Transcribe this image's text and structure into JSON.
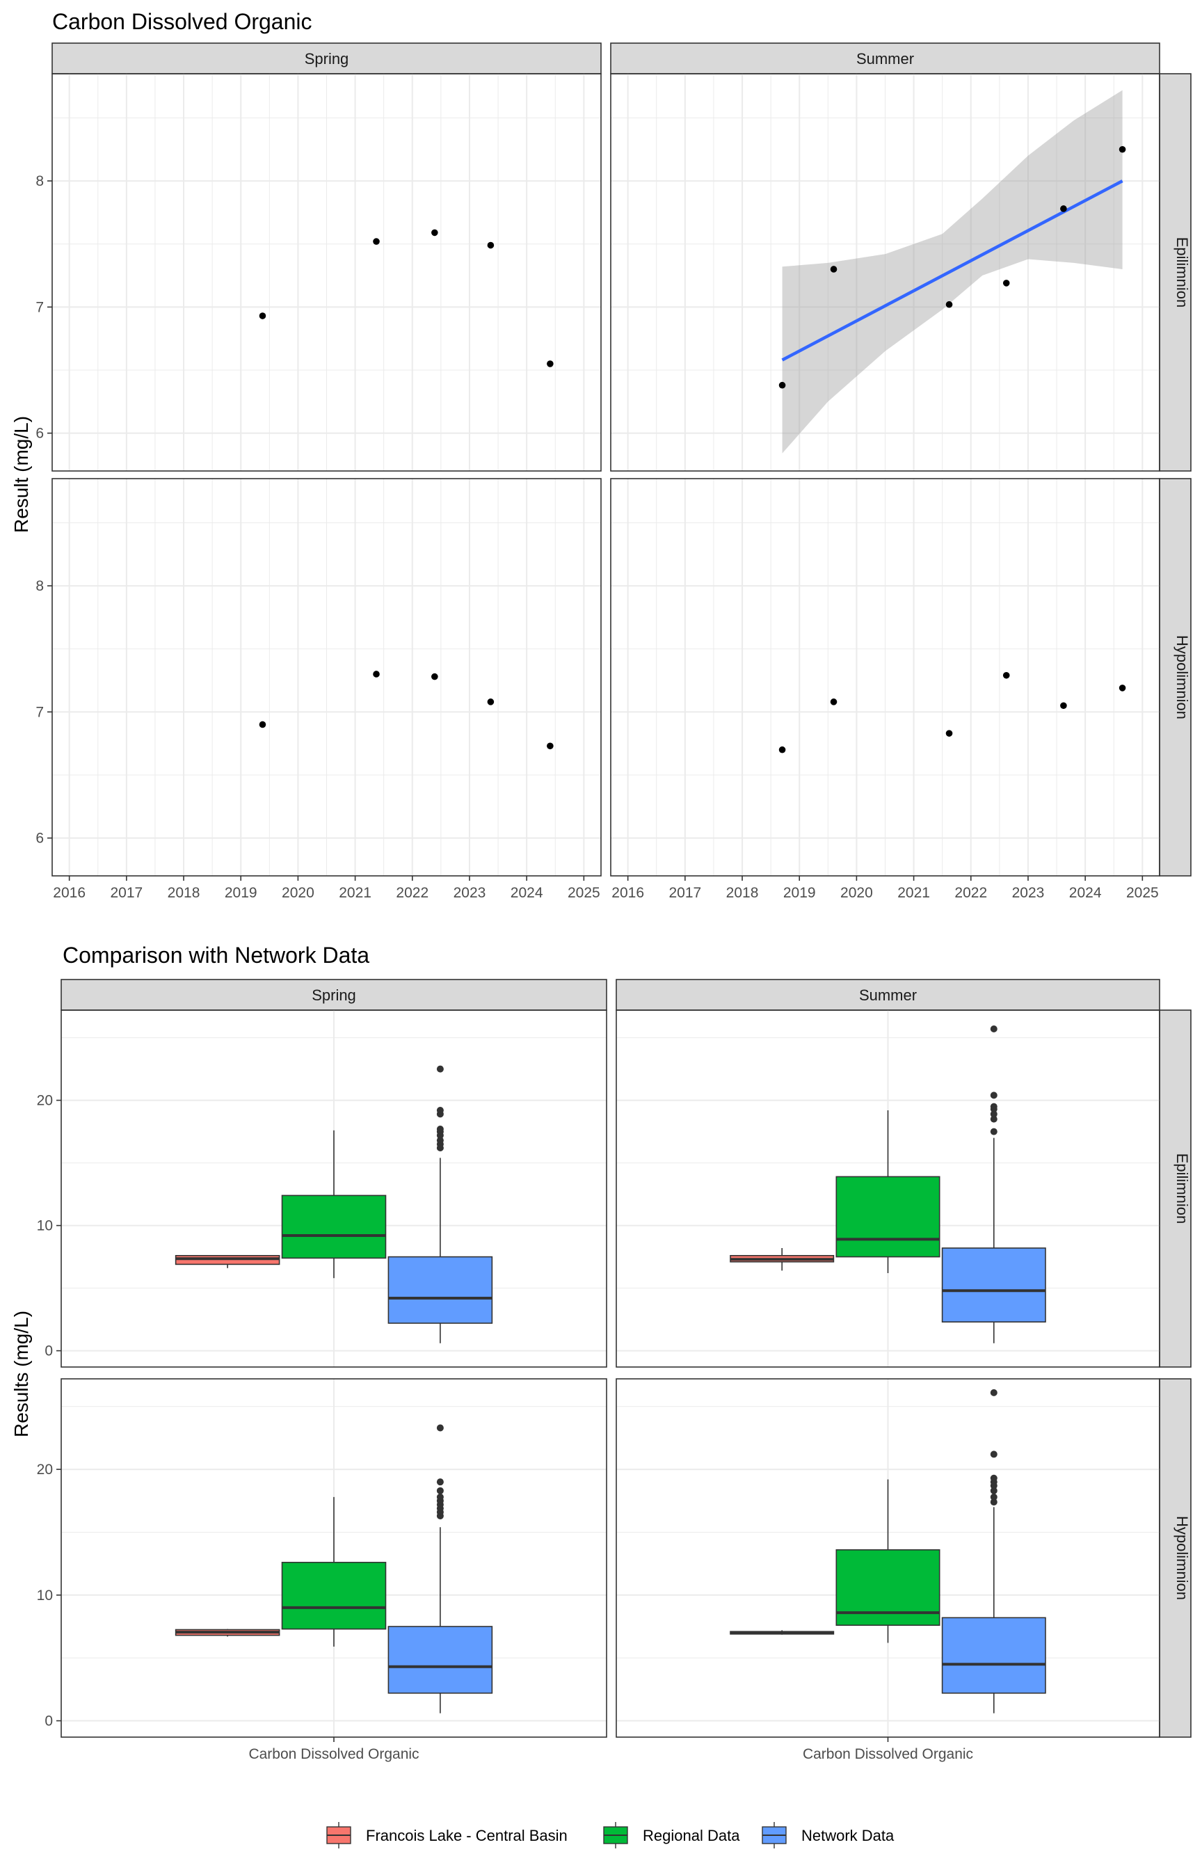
{
  "chart_data": [
    {
      "type": "scatter",
      "title": "Carbon Dissolved Organic",
      "ylabel": "Result (mg/L)",
      "xlabel": "",
      "facet_cols": [
        "Spring",
        "Summer"
      ],
      "facet_rows": [
        "Epilimnion",
        "Hypolimnion"
      ],
      "xlim": [
        2015.7,
        2025.3
      ],
      "ylim": [
        5.7,
        8.85
      ],
      "x_ticks": [
        "2016",
        "2017",
        "2018",
        "2019",
        "2020",
        "2021",
        "2022",
        "2023",
        "2024",
        "2025"
      ],
      "y_ticks": [
        "6",
        "7",
        "8"
      ],
      "grid": true,
      "panels": [
        {
          "season": "Spring",
          "layer": "Epilimnion",
          "points": [
            {
              "x": 2019.38,
              "y": 6.93
            },
            {
              "x": 2021.37,
              "y": 7.52
            },
            {
              "x": 2022.39,
              "y": 7.59
            },
            {
              "x": 2023.37,
              "y": 7.49
            },
            {
              "x": 2024.41,
              "y": 6.55
            }
          ]
        },
        {
          "season": "Summer",
          "layer": "Epilimnion",
          "points": [
            {
              "x": 2018.7,
              "y": 6.38
            },
            {
              "x": 2019.6,
              "y": 7.3
            },
            {
              "x": 2021.62,
              "y": 7.02
            },
            {
              "x": 2022.62,
              "y": 7.19
            },
            {
              "x": 2023.62,
              "y": 7.78
            },
            {
              "x": 2024.65,
              "y": 8.25
            }
          ],
          "trend": {
            "x": [
              2018.7,
              2024.65
            ],
            "y": [
              6.58,
              8.0
            ],
            "ci_x": [
              2018.7,
              2019.5,
              2020.5,
              2021.5,
              2022.2,
              2023.0,
              2023.8,
              2024.65
            ],
            "ci_upper": [
              7.32,
              7.35,
              7.42,
              7.58,
              7.86,
              8.2,
              8.48,
              8.72
            ],
            "ci_lower": [
              5.84,
              6.25,
              6.65,
              6.98,
              7.25,
              7.38,
              7.35,
              7.3
            ]
          }
        },
        {
          "season": "Spring",
          "layer": "Hypolimnion",
          "points": [
            {
              "x": 2019.38,
              "y": 6.9
            },
            {
              "x": 2021.37,
              "y": 7.3
            },
            {
              "x": 2022.39,
              "y": 7.28
            },
            {
              "x": 2023.37,
              "y": 7.08
            },
            {
              "x": 2024.41,
              "y": 6.73
            }
          ]
        },
        {
          "season": "Summer",
          "layer": "Hypolimnion",
          "points": [
            {
              "x": 2018.7,
              "y": 6.7
            },
            {
              "x": 2019.6,
              "y": 7.08
            },
            {
              "x": 2021.62,
              "y": 6.83
            },
            {
              "x": 2022.62,
              "y": 7.29
            },
            {
              "x": 2023.62,
              "y": 7.05
            },
            {
              "x": 2024.65,
              "y": 7.19
            }
          ]
        }
      ]
    },
    {
      "type": "box",
      "title": "Comparison with Network Data",
      "ylabel": "Results (mg/L)",
      "xlabel": "",
      "x_category": "Carbon Dissolved Organic",
      "facet_cols": [
        "Spring",
        "Summer"
      ],
      "facet_rows": [
        "Epilimnion",
        "Hypolimnion"
      ],
      "ylim": [
        -1.3,
        27.2
      ],
      "y_ticks": [
        "0",
        "10",
        "20"
      ],
      "grid": true,
      "legend": {
        "position": "bottom",
        "entries": [
          {
            "label": "Francois Lake - Central Basin",
            "color": "#F8766D"
          },
          {
            "label": "Regional Data",
            "color": "#00BA38"
          },
          {
            "label": "Network Data",
            "color": "#619CFF"
          }
        ]
      },
      "panels": [
        {
          "season": "Spring",
          "layer": "Epilimnion",
          "boxes": [
            {
              "group": "Francois Lake - Central Basin",
              "min": 6.6,
              "q1": 6.9,
              "median": 7.35,
              "q3": 7.6,
              "max": 7.6,
              "outliers": []
            },
            {
              "group": "Regional Data",
              "min": 5.8,
              "q1": 7.4,
              "median": 9.2,
              "q3": 12.4,
              "max": 17.6,
              "outliers": []
            },
            {
              "group": "Network Data",
              "min": 0.6,
              "q1": 2.2,
              "median": 4.2,
              "q3": 7.5,
              "max": 15.4,
              "outliers": [
                16.2,
                16.5,
                16.8,
                17.2,
                17.5,
                17.7,
                18.9,
                19.2,
                22.5
              ]
            }
          ]
        },
        {
          "season": "Summer",
          "layer": "Epilimnion",
          "boxes": [
            {
              "group": "Francois Lake - Central Basin",
              "min": 6.4,
              "q1": 7.1,
              "median": 7.3,
              "q3": 7.6,
              "max": 8.2,
              "outliers": []
            },
            {
              "group": "Regional Data",
              "min": 6.2,
              "q1": 7.5,
              "median": 8.9,
              "q3": 13.9,
              "max": 19.2,
              "outliers": []
            },
            {
              "group": "Network Data",
              "min": 0.6,
              "q1": 2.3,
              "median": 4.8,
              "q3": 8.2,
              "max": 17.0,
              "outliers": [
                17.5,
                18.5,
                18.9,
                19.3,
                19.5,
                20.4,
                25.7
              ]
            }
          ]
        },
        {
          "season": "Spring",
          "layer": "Hypolimnion",
          "boxes": [
            {
              "group": "Francois Lake - Central Basin",
              "min": 6.7,
              "q1": 6.8,
              "median": 7.05,
              "q3": 7.25,
              "max": 7.3,
              "outliers": []
            },
            {
              "group": "Regional Data",
              "min": 5.9,
              "q1": 7.3,
              "median": 9.0,
              "q3": 12.6,
              "max": 17.8,
              "outliers": []
            },
            {
              "group": "Network Data",
              "min": 0.6,
              "q1": 2.2,
              "median": 4.3,
              "q3": 7.5,
              "max": 15.4,
              "outliers": [
                16.3,
                16.6,
                16.9,
                17.2,
                17.5,
                17.8,
                18.3,
                19.0,
                23.3
              ]
            }
          ]
        },
        {
          "season": "Summer",
          "layer": "Hypolimnion",
          "boxes": [
            {
              "group": "Francois Lake - Central Basin",
              "min": 6.85,
              "q1": 6.9,
              "median": 7.0,
              "q3": 7.1,
              "max": 7.2,
              "outliers": []
            },
            {
              "group": "Regional Data",
              "min": 6.2,
              "q1": 7.6,
              "median": 8.6,
              "q3": 13.6,
              "max": 19.2,
              "outliers": []
            },
            {
              "group": "Network Data",
              "min": 0.6,
              "q1": 2.2,
              "median": 4.5,
              "q3": 8.2,
              "max": 17.0,
              "outliers": [
                17.4,
                17.8,
                18.3,
                18.7,
                19.0,
                19.3,
                21.2,
                26.1
              ]
            }
          ]
        }
      ]
    }
  ]
}
